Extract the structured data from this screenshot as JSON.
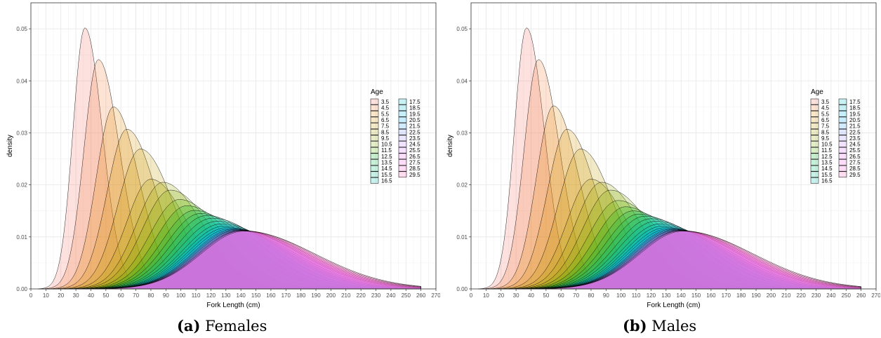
{
  "chart_data": [
    {
      "type": "area",
      "panel_letter": "(a)",
      "caption": "Females",
      "xlabel": "Fork Length (cm)",
      "ylabel": "density",
      "xlim": [
        0,
        270
      ],
      "ylim": [
        0,
        0.055
      ],
      "xticks": [
        0,
        10,
        20,
        30,
        40,
        50,
        60,
        70,
        80,
        90,
        100,
        110,
        120,
        130,
        140,
        150,
        160,
        170,
        180,
        190,
        200,
        210,
        220,
        230,
        240,
        250,
        260,
        270
      ],
      "yticks": [
        0.0,
        0.01,
        0.02,
        0.03,
        0.04,
        0.05
      ],
      "ytick_labels": [
        "0.00",
        "0.01",
        "0.02",
        "0.03",
        "0.04",
        "0.05"
      ],
      "grid": true,
      "legend_title": "Age",
      "legend_position": "right",
      "series": [
        {
          "name": "3.5",
          "peak_x": 36,
          "peak_y": 0.0502,
          "color": "#F8766D"
        },
        {
          "name": "4.5",
          "peak_x": 45,
          "peak_y": 0.0441,
          "color": "#F07E3A"
        },
        {
          "name": "5.5",
          "peak_x": 55,
          "peak_y": 0.035,
          "color": "#E48800"
        },
        {
          "name": "6.5",
          "peak_x": 64,
          "peak_y": 0.0307,
          "color": "#D59200"
        },
        {
          "name": "7.5",
          "peak_x": 73,
          "peak_y": 0.0269,
          "color": "#C49A00"
        },
        {
          "name": "8.5",
          "peak_x": 80,
          "peak_y": 0.0211,
          "color": "#B0A200"
        },
        {
          "name": "9.5",
          "peak_x": 88,
          "peak_y": 0.0205,
          "color": "#99A800"
        },
        {
          "name": "10.5",
          "peak_x": 93,
          "peak_y": 0.019,
          "color": "#7CAE00"
        },
        {
          "name": "11.5",
          "peak_x": 99,
          "peak_y": 0.0172,
          "color": "#53B400"
        },
        {
          "name": "12.5",
          "peak_x": 104,
          "peak_y": 0.016,
          "color": "#00B81F"
        },
        {
          "name": "13.5",
          "peak_x": 109,
          "peak_y": 0.0151,
          "color": "#00BB4E"
        },
        {
          "name": "14.5",
          "peak_x": 113,
          "peak_y": 0.0145,
          "color": "#00BE71"
        },
        {
          "name": "15.5",
          "peak_x": 117,
          "peak_y": 0.0141,
          "color": "#00C08E"
        },
        {
          "name": "16.5",
          "peak_x": 121,
          "peak_y": 0.0136,
          "color": "#00C1A9"
        },
        {
          "name": "17.5",
          "peak_x": 124,
          "peak_y": 0.013,
          "color": "#00C0C2"
        },
        {
          "name": "18.5",
          "peak_x": 127,
          "peak_y": 0.0125,
          "color": "#00BDD8"
        },
        {
          "name": "19.5",
          "peak_x": 129,
          "peak_y": 0.0121,
          "color": "#00B7EB"
        },
        {
          "name": "20.5",
          "peak_x": 131,
          "peak_y": 0.0118,
          "color": "#00AEF9"
        },
        {
          "name": "21.5",
          "peak_x": 133,
          "peak_y": 0.0116,
          "color": "#35A2FF"
        },
        {
          "name": "22.5",
          "peak_x": 135,
          "peak_y": 0.0115,
          "color": "#7997FF"
        },
        {
          "name": "23.5",
          "peak_x": 136,
          "peak_y": 0.0114,
          "color": "#9F8CFF"
        },
        {
          "name": "24.5",
          "peak_x": 137,
          "peak_y": 0.0113,
          "color": "#BD81FF"
        },
        {
          "name": "25.5",
          "peak_x": 138,
          "peak_y": 0.0113,
          "color": "#D575FE"
        },
        {
          "name": "26.5",
          "peak_x": 139,
          "peak_y": 0.0112,
          "color": "#E76BF3"
        },
        {
          "name": "27.5",
          "peak_x": 140,
          "peak_y": 0.0112,
          "color": "#F564E3"
        },
        {
          "name": "28.5",
          "peak_x": 141,
          "peak_y": 0.0112,
          "color": "#FD61D1"
        },
        {
          "name": "29.5",
          "peak_x": 142,
          "peak_y": 0.0111,
          "color": "#FF62BC"
        }
      ]
    },
    {
      "type": "area",
      "panel_letter": "(b)",
      "caption": "Males",
      "xlabel": "Fork Length (cm)",
      "ylabel": "density",
      "xlim": [
        0,
        270
      ],
      "ylim": [
        0,
        0.055
      ],
      "xticks": [
        0,
        10,
        20,
        30,
        40,
        50,
        60,
        70,
        80,
        90,
        100,
        110,
        120,
        130,
        140,
        150,
        160,
        170,
        180,
        190,
        200,
        210,
        220,
        230,
        240,
        250,
        260,
        270
      ],
      "yticks": [
        0.0,
        0.01,
        0.02,
        0.03,
        0.04,
        0.05
      ],
      "ytick_labels": [
        "0.00",
        "0.01",
        "0.02",
        "0.03",
        "0.04",
        "0.05"
      ],
      "grid": true,
      "legend_title": "Age",
      "legend_position": "right",
      "series": [
        {
          "name": "3.5",
          "peak_x": 37,
          "peak_y": 0.0502,
          "color": "#F8766D"
        },
        {
          "name": "4.5",
          "peak_x": 45,
          "peak_y": 0.0441,
          "color": "#F07E3A"
        },
        {
          "name": "5.5",
          "peak_x": 55,
          "peak_y": 0.0352,
          "color": "#E48800"
        },
        {
          "name": "6.5",
          "peak_x": 64,
          "peak_y": 0.0307,
          "color": "#D59200"
        },
        {
          "name": "7.5",
          "peak_x": 73,
          "peak_y": 0.0269,
          "color": "#C49A00"
        },
        {
          "name": "8.5",
          "peak_x": 80,
          "peak_y": 0.0211,
          "color": "#B0A200"
        },
        {
          "name": "9.5",
          "peak_x": 87,
          "peak_y": 0.0205,
          "color": "#99A800"
        },
        {
          "name": "10.5",
          "peak_x": 93,
          "peak_y": 0.019,
          "color": "#7CAE00"
        },
        {
          "name": "11.5",
          "peak_x": 98,
          "peak_y": 0.017,
          "color": "#53B400"
        },
        {
          "name": "12.5",
          "peak_x": 103,
          "peak_y": 0.0158,
          "color": "#00B81F"
        },
        {
          "name": "13.5",
          "peak_x": 108,
          "peak_y": 0.015,
          "color": "#00BB4E"
        },
        {
          "name": "14.5",
          "peak_x": 112,
          "peak_y": 0.0144,
          "color": "#00BE71"
        },
        {
          "name": "15.5",
          "peak_x": 116,
          "peak_y": 0.014,
          "color": "#00C08E"
        },
        {
          "name": "16.5",
          "peak_x": 120,
          "peak_y": 0.0135,
          "color": "#00C1A9"
        },
        {
          "name": "17.5",
          "peak_x": 123,
          "peak_y": 0.013,
          "color": "#00C0C2"
        },
        {
          "name": "18.5",
          "peak_x": 126,
          "peak_y": 0.0125,
          "color": "#00BDD8"
        },
        {
          "name": "19.5",
          "peak_x": 128,
          "peak_y": 0.0121,
          "color": "#00B7EB"
        },
        {
          "name": "20.5",
          "peak_x": 130,
          "peak_y": 0.0118,
          "color": "#00AEF9"
        },
        {
          "name": "21.5",
          "peak_x": 132,
          "peak_y": 0.0116,
          "color": "#35A2FF"
        },
        {
          "name": "22.5",
          "peak_x": 134,
          "peak_y": 0.0115,
          "color": "#7997FF"
        },
        {
          "name": "23.5",
          "peak_x": 135,
          "peak_y": 0.0114,
          "color": "#9F8CFF"
        },
        {
          "name": "24.5",
          "peak_x": 136,
          "peak_y": 0.0113,
          "color": "#BD81FF"
        },
        {
          "name": "25.5",
          "peak_x": 137,
          "peak_y": 0.0113,
          "color": "#D575FE"
        },
        {
          "name": "26.5",
          "peak_x": 138,
          "peak_y": 0.0112,
          "color": "#E76BF3"
        },
        {
          "name": "27.5",
          "peak_x": 139,
          "peak_y": 0.0112,
          "color": "#F564E3"
        },
        {
          "name": "28.5",
          "peak_x": 140,
          "peak_y": 0.0112,
          "color": "#FD61D1"
        },
        {
          "name": "29.5",
          "peak_x": 141,
          "peak_y": 0.0111,
          "color": "#FF62BC"
        }
      ]
    }
  ]
}
